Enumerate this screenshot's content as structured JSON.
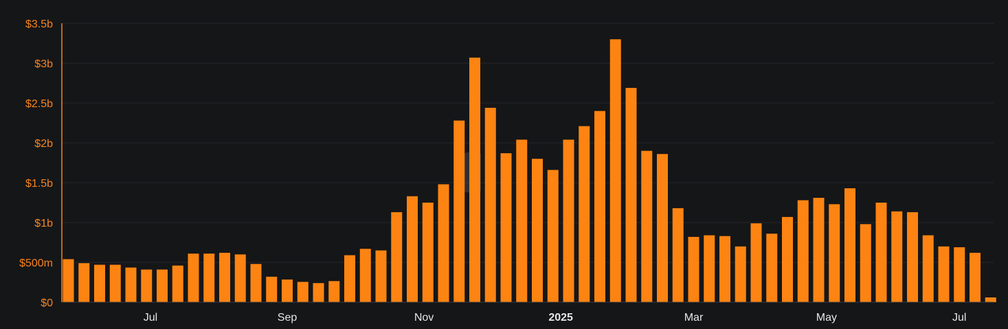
{
  "chart_data": {
    "type": "bar",
    "title": "",
    "xlabel": "",
    "ylabel": "",
    "ylim": [
      0,
      3500000000
    ],
    "yticks": [
      {
        "value": 0,
        "label": "$0"
      },
      {
        "value": 500000000,
        "label": "$500m"
      },
      {
        "value": 1000000000,
        "label": "$1b"
      },
      {
        "value": 1500000000,
        "label": "$1.5b"
      },
      {
        "value": 2000000000,
        "label": "$2b"
      },
      {
        "value": 2500000000,
        "label": "$2.5b"
      },
      {
        "value": 3000000000,
        "label": "$3b"
      },
      {
        "value": 3500000000,
        "label": "$3.5b"
      }
    ],
    "xticks": [
      {
        "bar_index": 5.25,
        "label": "Jul",
        "bold": false
      },
      {
        "bar_index": 14.0,
        "label": "Sep",
        "bold": false
      },
      {
        "bar_index": 22.75,
        "label": "Nov",
        "bold": false
      },
      {
        "bar_index": 31.5,
        "label": "2025",
        "bold": true
      },
      {
        "bar_index": 40.0,
        "label": "Mar",
        "bold": false
      },
      {
        "bar_index": 48.5,
        "label": "May",
        "bold": false
      },
      {
        "bar_index": 57.0,
        "label": "Jul",
        "bold": false
      }
    ],
    "bar_color": "#fd8412",
    "axis_color": "#fd8412",
    "grid": true,
    "watermark": "",
    "values": [
      540000000,
      490000000,
      470000000,
      470000000,
      435000000,
      410000000,
      410000000,
      460000000,
      610000000,
      610000000,
      620000000,
      600000000,
      480000000,
      320000000,
      285000000,
      255000000,
      240000000,
      265000000,
      590000000,
      670000000,
      650000000,
      1130000000,
      1330000000,
      1250000000,
      1480000000,
      2280000000,
      3070000000,
      2440000000,
      1870000000,
      2040000000,
      1800000000,
      1660000000,
      2040000000,
      2210000000,
      2400000000,
      3300000000,
      2690000000,
      1900000000,
      1860000000,
      1180000000,
      820000000,
      840000000,
      830000000,
      700000000,
      990000000,
      860000000,
      1070000000,
      1280000000,
      1310000000,
      1230000000,
      1430000000,
      980000000,
      1250000000,
      1140000000,
      1130000000,
      840000000,
      700000000,
      690000000,
      620000000,
      60000000
    ]
  }
}
